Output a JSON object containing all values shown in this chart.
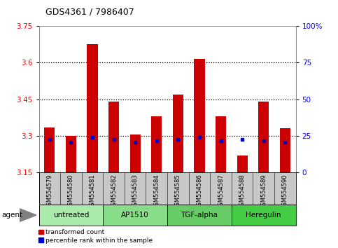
{
  "title": "GDS4361 / 7986407",
  "samples": [
    "GSM554579",
    "GSM554580",
    "GSM554581",
    "GSM554582",
    "GSM554583",
    "GSM554584",
    "GSM554585",
    "GSM554586",
    "GSM554587",
    "GSM554588",
    "GSM554589",
    "GSM554590"
  ],
  "bar_tops": [
    3.335,
    3.3,
    3.675,
    3.44,
    3.305,
    3.38,
    3.47,
    3.615,
    3.38,
    3.22,
    3.44,
    3.33
  ],
  "percentile_y": [
    3.285,
    3.275,
    3.295,
    3.285,
    3.275,
    3.28,
    3.285,
    3.295,
    3.28,
    3.285,
    3.28,
    3.275
  ],
  "y_min": 3.15,
  "y_max": 3.75,
  "y_ticks_left": [
    3.15,
    3.3,
    3.45,
    3.6,
    3.75
  ],
  "y_ticks_right": [
    0,
    25,
    50,
    75,
    100
  ],
  "y_right_labels": [
    "0",
    "25",
    "50",
    "75",
    "100%"
  ],
  "dotted_lines": [
    3.3,
    3.45,
    3.6
  ],
  "groups": [
    {
      "label": "untreated",
      "start": 0,
      "end": 3
    },
    {
      "label": "AP1510",
      "start": 3,
      "end": 6
    },
    {
      "label": "TGF-alpha",
      "start": 6,
      "end": 9
    },
    {
      "label": "Heregulin",
      "start": 9,
      "end": 12
    }
  ],
  "group_colors": [
    "#aaeaaa",
    "#88dd88",
    "#66cc66",
    "#44cc44"
  ],
  "bar_color": "#CC0000",
  "blue_color": "#0000CC",
  "bg_label_row": "#C8C8C8",
  "legend_red_label": "transformed count",
  "legend_blue_label": "percentile rank within the sample",
  "agent_label": "agent",
  "bar_width": 0.5
}
